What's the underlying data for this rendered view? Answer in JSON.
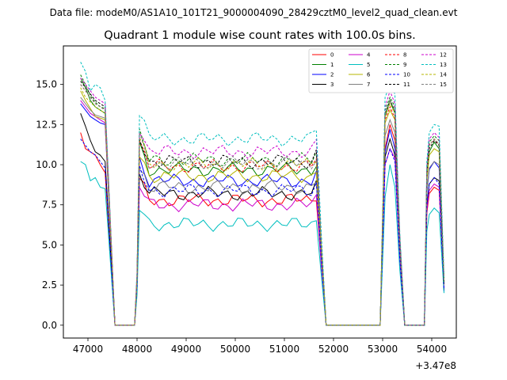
{
  "chart_data": {
    "type": "line",
    "suptitle": "Data file: modeM0/AS1A10_101T21_9000004090_28429cztM0_level2_quad_clean.evt",
    "title": "Quadrant 1 module wise count rates with 100.0s bins.",
    "xlabel": "",
    "ylabel": "",
    "x_offset_label": "+3.47e8",
    "xlim": [
      46500,
      54500
    ],
    "ylim": [
      -0.8,
      17.4
    ],
    "xticks": [
      "47000",
      "48000",
      "49000",
      "50000",
      "51000",
      "52000",
      "53000",
      "54000"
    ],
    "yticks": [
      "0.0",
      "2.5",
      "5.0",
      "7.5",
      "10.0",
      "12.5",
      "15.0"
    ],
    "legend_position": "upper-right",
    "x_segments": [
      {
        "start": 46850,
        "end": 47350,
        "step": 100
      },
      {
        "start": 48050,
        "end": 51650,
        "step": 100
      },
      {
        "start": 53050,
        "end": 53250,
        "step": 100
      },
      {
        "start": 53950,
        "end": 54150,
        "step": 100
      }
    ],
    "gaps": [
      {
        "start": 47550,
        "end": 47950
      },
      {
        "start": 51850,
        "end": 52950
      },
      {
        "start": 53450,
        "end": 53850
      }
    ],
    "end_x": 54250,
    "series": [
      {
        "name": "0",
        "color": "#ff0000",
        "style": "solid",
        "v1": [
          12.0,
          11.0,
          10.8,
          10.6,
          10.0,
          9.5
        ],
        "mid": 7.8,
        "v3": [
          11.0,
          12.5,
          11.5
        ],
        "v4": [
          8.2,
          8.6,
          8.4
        ],
        "end": 2.5
      },
      {
        "name": "1",
        "color": "#008000",
        "style": "solid",
        "v1": [
          15.4,
          14.8,
          14.0,
          13.6,
          13.4,
          13.2
        ],
        "mid": 9.7,
        "v3": [
          13.0,
          14.0,
          13.2
        ],
        "v4": [
          10.8,
          11.4,
          11.0
        ],
        "end": 2.6
      },
      {
        "name": "2",
        "color": "#0000ff",
        "style": "solid",
        "v1": [
          13.8,
          13.4,
          13.0,
          12.8,
          12.6,
          12.5
        ],
        "mid": 9.0,
        "v3": [
          10.8,
          12.2,
          11.0
        ],
        "v4": [
          9.7,
          10.2,
          9.8
        ],
        "end": 2.1
      },
      {
        "name": "3",
        "color": "#000000",
        "style": "solid",
        "v1": [
          13.2,
          12.4,
          11.5,
          10.8,
          10.6,
          10.2
        ],
        "mid": 8.2,
        "v3": [
          10.5,
          11.6,
          10.6
        ],
        "v4": [
          8.8,
          9.2,
          9.0
        ],
        "end": 2.2
      },
      {
        "name": "4",
        "color": "#cc00cc",
        "style": "solid",
        "v1": [
          14.0,
          13.6,
          13.2,
          13.0,
          12.8,
          12.6
        ],
        "mid": 7.5,
        "v3": [
          10.0,
          11.0,
          10.4
        ],
        "v4": [
          8.4,
          8.8,
          8.6
        ],
        "end": 2.4
      },
      {
        "name": "5",
        "color": "#00bfbf",
        "style": "solid",
        "v1": [
          10.2,
          10.0,
          9.0,
          9.2,
          8.6,
          8.5
        ],
        "mid": 6.3,
        "v3": [
          8.0,
          10.0,
          8.6
        ],
        "v4": [
          6.9,
          7.3,
          7.0
        ],
        "end": 2.0
      },
      {
        "name": "6",
        "color": "#b5b500",
        "style": "solid",
        "v1": [
          14.6,
          14.0,
          13.5,
          13.0,
          12.9,
          12.8
        ],
        "mid": 9.3,
        "v3": [
          12.6,
          13.4,
          12.8
        ],
        "v4": [
          10.6,
          11.0,
          10.8
        ],
        "end": 2.6
      },
      {
        "name": "7",
        "color": "#808080",
        "style": "solid",
        "v1": [
          14.2,
          13.8,
          13.4,
          13.1,
          13.0,
          12.9
        ],
        "mid": 8.6,
        "v3": [
          11.8,
          12.8,
          12.0
        ],
        "v4": [
          9.8,
          10.2,
          10.0
        ],
        "end": 2.5
      },
      {
        "name": "8",
        "color": "#ff0000",
        "style": "dashed",
        "v1": [
          15.0,
          14.6,
          14.2,
          13.8,
          13.6,
          13.4
        ],
        "mid": 9.9,
        "v3": [
          12.8,
          13.6,
          12.9
        ],
        "v4": [
          11.2,
          11.6,
          11.2
        ],
        "end": 2.8
      },
      {
        "name": "9",
        "color": "#008000",
        "style": "dashed",
        "v1": [
          15.6,
          15.0,
          14.3,
          13.9,
          13.6,
          13.5
        ],
        "mid": 10.3,
        "v3": [
          13.4,
          14.2,
          13.6
        ],
        "v4": [
          11.4,
          11.8,
          11.5
        ],
        "end": 2.7
      },
      {
        "name": "10",
        "color": "#0000ff",
        "style": "dashed",
        "v1": [
          11.6,
          11.2,
          10.8,
          10.6,
          10.2,
          9.8
        ],
        "mid": 8.4,
        "v3": [
          10.0,
          11.0,
          10.2
        ],
        "v4": [
          8.8,
          9.2,
          8.8
        ],
        "end": 2.2
      },
      {
        "name": "11",
        "color": "#000000",
        "style": "dashed",
        "v1": [
          15.2,
          14.8,
          14.4,
          14.0,
          13.8,
          13.6
        ],
        "mid": 10.2,
        "v3": [
          13.2,
          14.0,
          13.4
        ],
        "v4": [
          11.0,
          11.5,
          11.2
        ],
        "end": 2.6
      },
      {
        "name": "12",
        "color": "#cc00cc",
        "style": "dashed",
        "v1": [
          15.4,
          15.0,
          14.6,
          14.2,
          14.0,
          13.8
        ],
        "mid": 10.8,
        "v3": [
          13.6,
          14.6,
          13.8
        ],
        "v4": [
          11.6,
          12.0,
          11.7
        ],
        "end": 2.9
      },
      {
        "name": "13",
        "color": "#00bfbf",
        "style": "dashed",
        "v1": [
          16.4,
          15.8,
          14.6,
          15.0,
          14.8,
          14.0
        ],
        "mid": 11.6,
        "v3": [
          14.2,
          15.0,
          14.4
        ],
        "v4": [
          12.0,
          12.5,
          12.4
        ],
        "end": 3.0
      },
      {
        "name": "14",
        "color": "#b5b500",
        "style": "dashed",
        "v1": [
          14.8,
          14.2,
          13.9,
          13.6,
          13.4,
          13.2
        ],
        "mid": 10.0,
        "v3": [
          13.0,
          13.8,
          13.2
        ],
        "v4": [
          11.2,
          11.6,
          11.3
        ],
        "end": 2.7
      },
      {
        "name": "15",
        "color": "#808080",
        "style": "dashed",
        "v1": [
          15.0,
          14.6,
          14.2,
          13.8,
          13.6,
          13.4
        ],
        "mid": 10.1,
        "v3": [
          13.2,
          14.0,
          13.4
        ],
        "v4": [
          11.2,
          11.6,
          11.3
        ],
        "end": 2.7
      }
    ]
  }
}
